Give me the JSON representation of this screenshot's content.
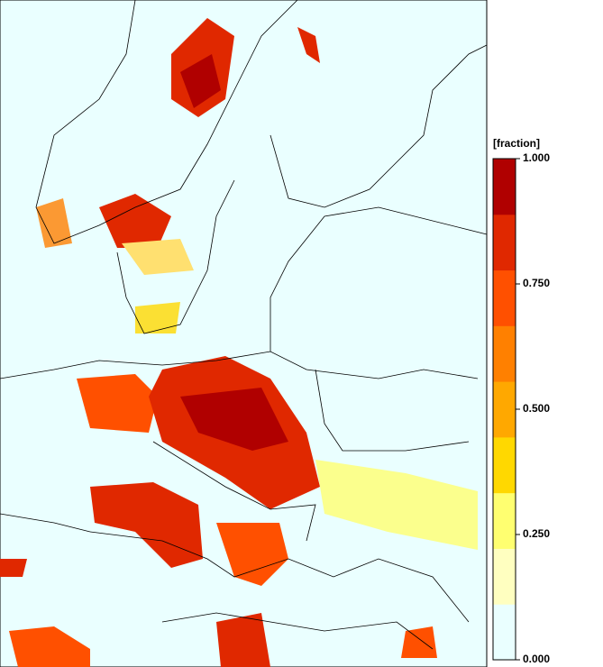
{
  "colorbar": {
    "title": "[fraction]",
    "range": [
      0,
      1
    ],
    "ticks": [
      {
        "value": 1,
        "label": "1.000"
      },
      {
        "value": 0.75,
        "label": "0.750"
      },
      {
        "value": 0.5,
        "label": "0.500"
      },
      {
        "value": 0.25,
        "label": "0.250"
      },
      {
        "value": 0,
        "label": "0.000"
      }
    ],
    "colors": [
      "#eaffff",
      "#ffffc0",
      "#ffff70",
      "#ffd800",
      "#ffa800",
      "#ff8000",
      "#ff5000",
      "#e02800",
      "#b00000"
    ]
  }
}
